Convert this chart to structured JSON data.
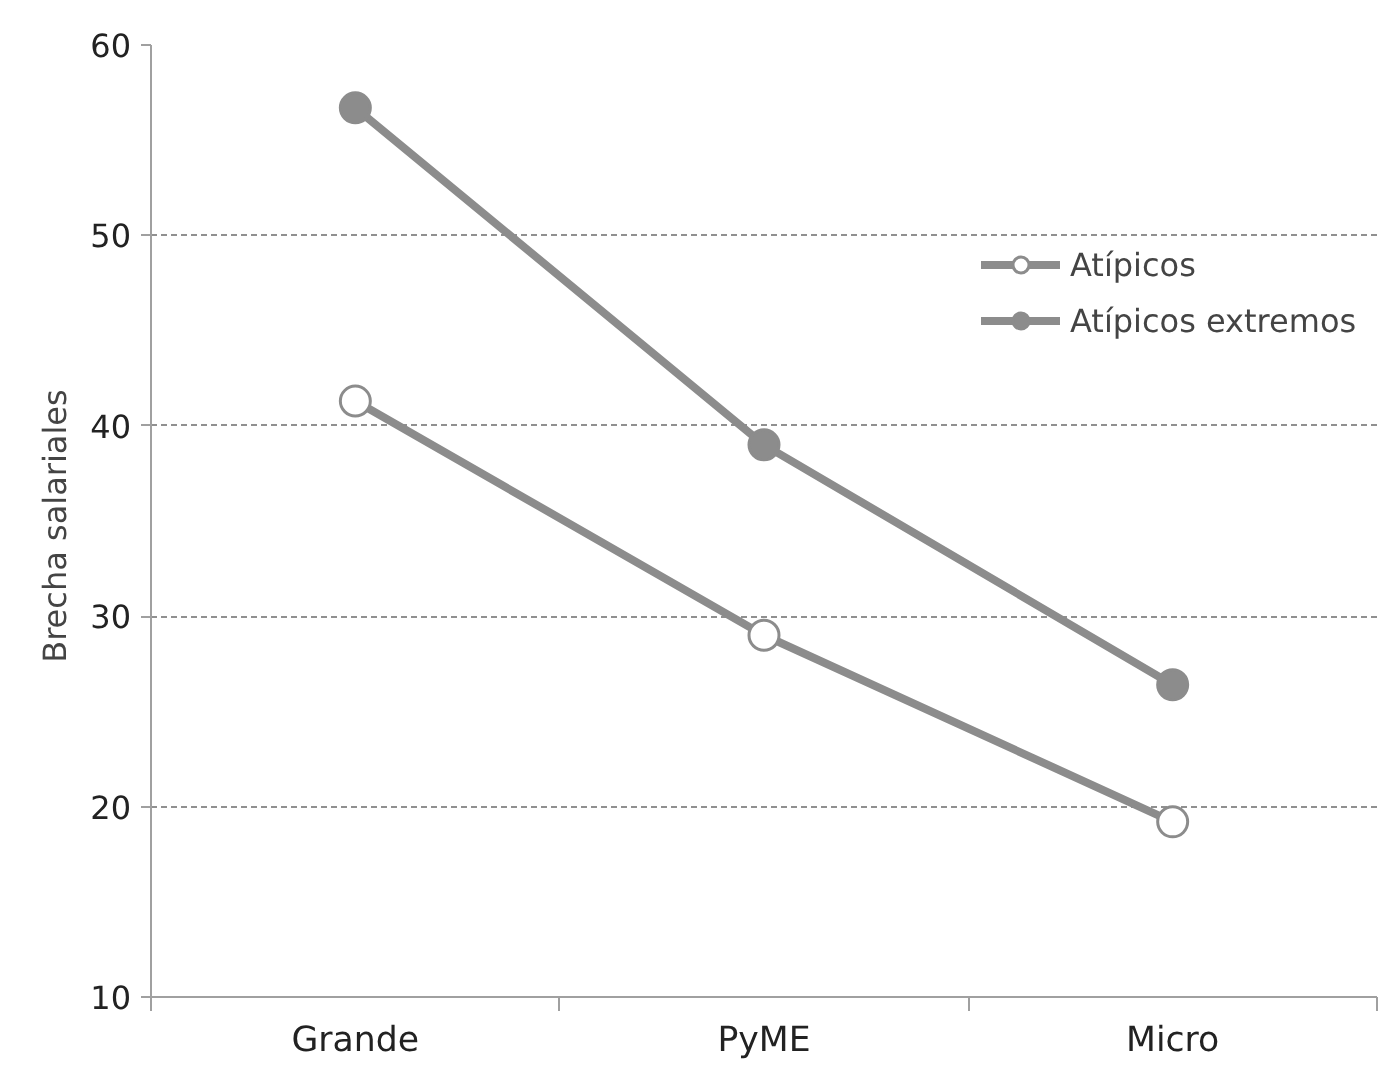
{
  "chart_data": {
    "type": "line",
    "ylabel": "Brecha  salariales",
    "categories": [
      "Grande",
      "PyME",
      "Micro"
    ],
    "series": [
      {
        "name": "Atípicos",
        "color": "#8c8c8c",
        "values": [
          41.3,
          29.0,
          19.2
        ]
      },
      {
        "name": "Atípicos extremos",
        "color": "#8c8c8c",
        "values": [
          56.7,
          39.0,
          26.4
        ]
      }
    ],
    "ylim": [
      10,
      60
    ],
    "yticks": [
      10,
      20,
      30,
      40,
      50,
      60
    ],
    "grid": "y",
    "legend": "top right",
    "marker": "circle",
    "line_style": "solid"
  }
}
